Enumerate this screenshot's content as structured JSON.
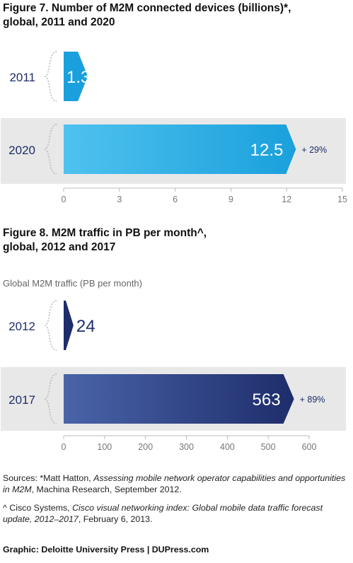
{
  "chart_data": [
    {
      "type": "bar",
      "orientation": "horizontal",
      "title_line1": "Figure 7. Number of M2M connected devices (billions)*,",
      "title_line2": "global, 2011 and 2020",
      "categories": [
        "2011",
        "2020"
      ],
      "values": [
        1.3,
        12.5
      ],
      "value_labels": [
        "1.3",
        "12.5"
      ],
      "growth_label": "+ 29%",
      "xlim": [
        0,
        15
      ],
      "xticks": [
        0,
        3,
        6,
        9,
        12,
        15
      ],
      "colors": {
        "bar": "#1aa0dc",
        "bar_light": "#4fc2ef",
        "band": "#e8e8e8"
      }
    },
    {
      "type": "bar",
      "orientation": "horizontal",
      "title_line1": "Figure 8. M2M traffic in PB per month^,",
      "title_line2": "global, 2012 and 2017",
      "subtitle": "Global M2M traffic (PB per month)",
      "categories": [
        "2012",
        "2017"
      ],
      "values": [
        24,
        563
      ],
      "value_labels": [
        "24",
        "563"
      ],
      "growth_label": "+ 89%",
      "xlim": [
        0,
        600
      ],
      "xticks": [
        0,
        100,
        200,
        300,
        400,
        500,
        600
      ],
      "colors": {
        "bar": "#1e2d6b",
        "bar_light": "#4a64a8",
        "band": "#e8e8e8"
      }
    }
  ],
  "sources": {
    "s1_pre": "Sources: *Matt Hatton, ",
    "s1_title": "Assessing mobile network operator capabilities and opportunities in M2M",
    "s1_post": ", Machina Research, September 2012.",
    "s2_pre": "^ Cisco Systems, ",
    "s2_title": "Cisco visual networking index: Global mobile data traffic forecast update, 2012–2017",
    "s2_post": ", February 6, 2013."
  },
  "credit": "Graphic: Deloitte University Press | DUPress.com"
}
